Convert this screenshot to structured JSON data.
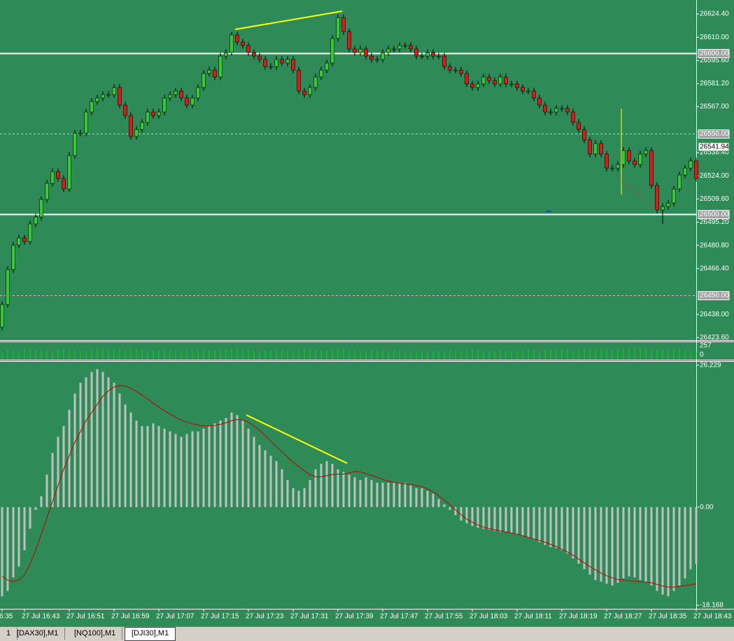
{
  "chart_data": [
    {
      "type": "candlestick",
      "xlim": [
        0,
        124
      ],
      "xticks": [
        {
          "value": 0,
          "label": "6:35"
        },
        {
          "value": 4,
          "label": "27 Jul 16:43"
        },
        {
          "value": 12,
          "label": "27 Jul 16:51"
        },
        {
          "value": 20,
          "label": "27 Jul 16:59"
        },
        {
          "value": 28,
          "label": "27 Jul 17:07"
        },
        {
          "value": 36,
          "label": "27 Jul 17:15"
        },
        {
          "value": 44,
          "label": "27 Jul 17:23"
        },
        {
          "value": 52,
          "label": "27 Jul 17:31"
        },
        {
          "value": 60,
          "label": "27 Jul 17:39"
        },
        {
          "value": 68,
          "label": "27 Jul 17:47"
        },
        {
          "value": 76,
          "label": "27 Jul 17:55"
        },
        {
          "value": 84,
          "label": "27 Jul 18:03"
        },
        {
          "value": 92,
          "label": "27 Jul 18:11"
        },
        {
          "value": 100,
          "label": "27 Jul 18:19"
        },
        {
          "value": 108,
          "label": "27 Jul 18:27"
        },
        {
          "value": 116,
          "label": "27 Jul 18:35"
        },
        {
          "value": 124,
          "label": "27 Jul 18:43"
        }
      ],
      "ylim": [
        26422.0,
        26633.1
      ],
      "yticks": [
        {
          "value": 26624.4,
          "label": "26624.40"
        },
        {
          "value": 26610,
          "label": "26610.00"
        },
        {
          "value": 26595.6,
          "label": "26595.60"
        },
        {
          "value": 26581.2,
          "label": "26581.20"
        },
        {
          "value": 26567,
          "label": "26567.00"
        },
        {
          "value": 26538.4,
          "label": "26538.40"
        },
        {
          "value": 26524,
          "label": "26524.00"
        },
        {
          "value": 26509.6,
          "label": "26509.60"
        },
        {
          "value": 26495.2,
          "label": "26495.20"
        },
        {
          "value": 26480.8,
          "label": "26480.80"
        },
        {
          "value": 26466.4,
          "label": "26466.40"
        },
        {
          "value": 26438,
          "label": "26438.00"
        },
        {
          "value": 26423.6,
          "label": "26423.60"
        }
      ],
      "price_lines": [
        {
          "value": 26600,
          "label": "26600.00",
          "style": "solid"
        },
        {
          "value": 26550,
          "label": "26550.00",
          "style": "dashed"
        },
        {
          "value": 26500,
          "label": "26500.00",
          "style": "solid"
        },
        {
          "value": 26450,
          "label": "26450.00",
          "style": "dashed"
        }
      ],
      "current_price": 26541.94,
      "up_color": "#32cd32",
      "down_color": "#e01818",
      "open": [
        26430.0,
        26444.1,
        26465.8,
        26481.0,
        26485.4,
        26483.2,
        26494.1,
        26498.4,
        26509.3,
        26519.3,
        26526.6,
        26522.3,
        26515.8,
        26536.6,
        26550.5,
        26550.5,
        26563.6,
        26570.1,
        26572.3,
        26574.4,
        26574.4,
        26578.8,
        26567.9,
        26561.4,
        26548.4,
        26552.7,
        26557.1,
        26563.6,
        26561.4,
        26563.6,
        26572.3,
        26574.4,
        26576.6,
        26572.3,
        26567.9,
        26572.3,
        26578.8,
        26587.5,
        26589.6,
        26585.3,
        26598.3,
        26600.5,
        26611.4,
        26607.0,
        26604.9,
        26600.5,
        26598.3,
        26596.2,
        26591.8,
        26591.8,
        26596.2,
        26594.0,
        26596.2,
        26589.6,
        26576.6,
        26574.4,
        26578.8,
        26585.3,
        26589.6,
        26594.0,
        26609.2,
        26622.2,
        26613.5,
        26602.7,
        26600.5,
        26602.7,
        26598.3,
        26596.2,
        26596.2,
        26600.5,
        26602.7,
        26602.7,
        26604.9,
        26604.9,
        26602.7,
        26598.3,
        26598.3,
        26600.5,
        26598.3,
        26598.3,
        26591.8,
        26589.6,
        26589.6,
        26587.5,
        26581.0,
        26578.8,
        26581.0,
        26585.3,
        26583.1,
        26581.0,
        26585.3,
        26581.0,
        26581.0,
        26578.8,
        26576.6,
        26576.6,
        26572.3,
        26567.9,
        26563.6,
        26563.6,
        26565.8,
        26565.8,
        26563.6,
        26557.1,
        26552.7,
        26546.2,
        26537.5,
        26544.0,
        26537.5,
        26528.8,
        26528.8,
        26531.0,
        26539.7,
        26533.2,
        26531.0,
        26537.5,
        26539.7,
        26518.0,
        26502.8,
        26504.9,
        26507.1,
        26515.8,
        26524.5,
        26528.8,
        26533.2
      ],
      "high": [
        26446.1,
        26467.8,
        26483.0,
        26487.4,
        26487.4,
        26496.1,
        26500.4,
        26511.3,
        26521.3,
        26528.6,
        26528.6,
        26524.3,
        26538.6,
        26552.5,
        26552.5,
        26565.6,
        26572.1,
        26574.3,
        26576.4,
        26576.4,
        26580.8,
        26580.8,
        26569.9,
        26563.4,
        26554.7,
        26559.1,
        26565.6,
        26565.6,
        26565.6,
        26574.3,
        26576.4,
        26578.6,
        26578.6,
        26574.3,
        26574.3,
        26580.8,
        26589.5,
        26591.6,
        26591.6,
        26600.3,
        26602.5,
        26613.4,
        26613.4,
        26609.0,
        26606.9,
        26602.5,
        26600.3,
        26598.2,
        26593.8,
        26598.2,
        26598.2,
        26598.2,
        26598.2,
        26591.6,
        26578.6,
        26580.8,
        26587.3,
        26591.6,
        26596.0,
        26611.2,
        26624.2,
        26624.2,
        26615.5,
        26604.7,
        26604.7,
        26604.7,
        26600.3,
        26598.2,
        26602.5,
        26604.7,
        26604.7,
        26606.9,
        26606.9,
        26606.9,
        26604.7,
        26600.3,
        26602.5,
        26602.5,
        26600.3,
        26600.3,
        26593.8,
        26591.6,
        26591.6,
        26589.5,
        26583.0,
        26583.0,
        26587.3,
        26587.3,
        26585.1,
        26587.3,
        26587.3,
        26583.0,
        26583.0,
        26580.8,
        26578.6,
        26578.6,
        26574.3,
        26569.9,
        26565.6,
        26567.8,
        26567.8,
        26567.8,
        26565.6,
        26559.1,
        26554.7,
        26548.2,
        26546.0,
        26546.0,
        26539.5,
        26530.8,
        26533.0,
        26541.7,
        26541.7,
        26535.2,
        26539.5,
        26541.7,
        26541.7,
        26520.0,
        26506.9,
        26509.1,
        26517.8,
        26526.5,
        26530.8,
        26535.2,
        26535.2
      ],
      "low": [
        26428.0,
        26442.1,
        26463.8,
        26479.0,
        26481.2,
        26481.2,
        26492.1,
        26496.4,
        26507.3,
        26517.3,
        26520.3,
        26513.8,
        26513.8,
        26534.6,
        26548.5,
        26548.5,
        26561.6,
        26568.1,
        26570.3,
        26572.4,
        26572.4,
        26565.9,
        26559.4,
        26546.4,
        26546.4,
        26550.7,
        26555.1,
        26559.4,
        26559.4,
        26561.6,
        26570.3,
        26572.4,
        26570.3,
        26565.9,
        26565.9,
        26570.3,
        26576.8,
        26585.5,
        26583.3,
        26583.3,
        26596.3,
        26598.5,
        26605.0,
        26602.9,
        26598.5,
        26596.3,
        26594.2,
        26589.8,
        26589.8,
        26589.8,
        26592.0,
        26592.0,
        26587.6,
        26574.6,
        26572.4,
        26572.4,
        26576.8,
        26583.3,
        26587.6,
        26592.0,
        26607.2,
        26611.5,
        26600.7,
        26598.5,
        26598.5,
        26596.3,
        26594.2,
        26594.2,
        26594.2,
        26598.5,
        26600.7,
        26600.7,
        26602.9,
        26600.7,
        26596.3,
        26596.3,
        26596.3,
        26596.3,
        26596.3,
        26589.8,
        26587.6,
        26587.6,
        26585.5,
        26579.0,
        26576.8,
        26576.8,
        26579.0,
        26581.1,
        26579.0,
        26579.0,
        26579.0,
        26579.0,
        26576.8,
        26574.6,
        26574.6,
        26570.3,
        26565.9,
        26561.6,
        26561.6,
        26561.6,
        26563.8,
        26561.6,
        26555.1,
        26550.7,
        26544.2,
        26535.5,
        26535.5,
        26535.5,
        26526.8,
        26526.8,
        26526.8,
        26529.0,
        26531.2,
        26529.0,
        26529.0,
        26535.5,
        26516.0,
        26500.8,
        26494.0,
        26502.9,
        26505.1,
        26513.8,
        26522.5,
        26526.8,
        26520.3
      ],
      "close": [
        26444.1,
        26465.8,
        26481.0,
        26485.4,
        26483.2,
        26494.1,
        26498.4,
        26509.3,
        26519.3,
        26526.6,
        26522.3,
        26515.8,
        26536.6,
        26550.5,
        26550.5,
        26563.6,
        26570.1,
        26572.3,
        26574.4,
        26574.4,
        26578.8,
        26567.9,
        26561.4,
        26548.4,
        26552.7,
        26557.1,
        26563.6,
        26561.4,
        26563.6,
        26572.3,
        26574.4,
        26576.6,
        26572.3,
        26567.9,
        26572.3,
        26578.8,
        26587.5,
        26589.6,
        26585.3,
        26598.3,
        26600.5,
        26611.4,
        26607.0,
        26604.9,
        26600.5,
        26598.3,
        26596.2,
        26591.8,
        26591.8,
        26596.2,
        26594.0,
        26596.2,
        26589.6,
        26576.6,
        26574.4,
        26578.8,
        26585.3,
        26589.6,
        26594.0,
        26609.2,
        26622.2,
        26613.5,
        26602.7,
        26600.5,
        26602.7,
        26598.3,
        26596.2,
        26596.2,
        26600.5,
        26602.7,
        26602.7,
        26604.9,
        26604.9,
        26602.7,
        26598.3,
        26598.3,
        26600.5,
        26598.3,
        26598.3,
        26591.8,
        26589.6,
        26589.6,
        26587.5,
        26581.0,
        26578.8,
        26581.0,
        26585.3,
        26583.1,
        26581.0,
        26585.3,
        26581.0,
        26581.0,
        26578.8,
        26576.6,
        26576.6,
        26572.3,
        26567.9,
        26563.6,
        26563.6,
        26565.8,
        26565.8,
        26563.6,
        26557.1,
        26552.7,
        26546.2,
        26537.5,
        26544.0,
        26537.5,
        26528.8,
        26528.8,
        26531.0,
        26539.7,
        26533.2,
        26531.0,
        26537.5,
        26539.7,
        26518.0,
        26502.8,
        26504.9,
        26507.1,
        26515.8,
        26524.5,
        26528.8,
        26533.2,
        26522.3
      ]
    },
    {
      "type": "volume",
      "color": "#00e000",
      "ylim": [
        0,
        257
      ],
      "yticks": [
        257,
        0
      ],
      "values": [
        120,
        150,
        140,
        130,
        160,
        170,
        150,
        140,
        130,
        120,
        150,
        160,
        170,
        140,
        130,
        150,
        160,
        180,
        190,
        170,
        160,
        150,
        140,
        160,
        170,
        150,
        130,
        140,
        150,
        160,
        150,
        140,
        130,
        150,
        140,
        160,
        170,
        150,
        140,
        160,
        150,
        170,
        180,
        160,
        150,
        140,
        130,
        140,
        150,
        160,
        150,
        140,
        130,
        150,
        160,
        170,
        150,
        140,
        150,
        170,
        180,
        160,
        150,
        140,
        130,
        140,
        150,
        140,
        130,
        140,
        150,
        140,
        130,
        120,
        130,
        140,
        130,
        120,
        130,
        140,
        150,
        140,
        130,
        150,
        160,
        150,
        140,
        130,
        140,
        150,
        140,
        130,
        140,
        150,
        160,
        150,
        140,
        150,
        160,
        170,
        160,
        150,
        140,
        150,
        160,
        170,
        180,
        170,
        160,
        150,
        160,
        170,
        180,
        200,
        190,
        180,
        170,
        160,
        150,
        160,
        170,
        160,
        150,
        140,
        130
      ]
    },
    {
      "type": "macd",
      "histogram_color": "#c0c0c0",
      "signal_color": "#c00000",
      "ylim": [
        -18.168,
        26.229
      ],
      "yticks": [
        26.229,
        {
          "value": 0,
          "label": "0.00"
        },
        -18.168
      ],
      "histogram": [
        -16.5,
        -15.5,
        -13,
        -11,
        -8,
        -4,
        -0.5,
        2,
        6,
        10,
        13,
        15,
        18,
        21,
        23,
        24,
        25,
        25.5,
        25,
        24,
        23,
        21,
        19,
        17.5,
        16,
        15,
        15,
        15.5,
        15,
        14.5,
        14,
        13.5,
        13,
        13.5,
        14,
        14,
        14.5,
        15,
        15.5,
        16,
        16.5,
        17.5,
        17,
        16,
        14.5,
        13,
        11.5,
        10.5,
        9.5,
        8.5,
        7,
        5,
        3.5,
        3,
        3.5,
        5,
        7,
        8,
        8.5,
        8,
        7,
        6.5,
        6,
        5.5,
        5,
        5.5,
        5,
        4.5,
        4.5,
        4.5,
        4.5,
        4.5,
        4.5,
        4,
        3.5,
        3.5,
        3,
        2.5,
        1.5,
        0.5,
        -0.5,
        -1.5,
        -2.5,
        -3,
        -3.5,
        -3.8,
        -4,
        -4.2,
        -4.4,
        -4.6,
        -4.6,
        -4.8,
        -5,
        -5.3,
        -5.6,
        -6,
        -6.5,
        -7,
        -7.4,
        -7.6,
        -8,
        -8.6,
        -9.5,
        -10.5,
        -11.5,
        -12.5,
        -13.5,
        -13.8,
        -14.2,
        -14.5,
        -14,
        -13.2,
        -12.8,
        -13,
        -13.5,
        -13.8,
        -14.5,
        -15.5,
        -16.2,
        -16.5,
        -15.5,
        -14.5,
        -13.2,
        -11.5,
        -10.5
      ],
      "signal": [
        -12.8,
        -13.5,
        -13.8,
        -13.5,
        -12.5,
        -10.5,
        -8,
        -5,
        -2,
        1,
        4,
        7,
        9.5,
        12,
        14,
        16,
        17.5,
        19,
        20.5,
        21.5,
        22.2,
        22.5,
        22.4,
        22,
        21.4,
        20.7,
        20,
        19.2,
        18.5,
        17.8,
        17.2,
        16.6,
        16.1,
        15.7,
        15.4,
        15.2,
        15,
        15,
        15.1,
        15.3,
        15.6,
        16,
        16.2,
        16.1,
        15.7,
        15,
        14.2,
        13.2,
        12.2,
        11.2,
        10.2,
        9.2,
        8.3,
        7.5,
        6.7,
        6,
        5.6,
        5.6,
        5.8,
        6,
        6.1,
        6.1,
        6.3,
        6.6,
        6.5,
        6.2,
        5.9,
        5.5,
        5.1,
        4.8,
        4.6,
        4.4,
        4.3,
        4.2,
        4,
        3.8,
        3.4,
        2.8,
        2.1,
        1.3,
        0.4,
        -0.5,
        -1.4,
        -2.2,
        -2.8,
        -3.3,
        -3.7,
        -4,
        -4.2,
        -4.4,
        -4.6,
        -4.8,
        -5,
        -5.3,
        -5.6,
        -5.9,
        -6.2,
        -6.5,
        -6.9,
        -7.3,
        -7.8,
        -8.3,
        -8.9,
        -9.6,
        -10.3,
        -11,
        -11.6,
        -12.2,
        -12.7,
        -13.1,
        -13.4,
        -13.5,
        -13.6,
        -13.7,
        -13.8,
        -13.9,
        -14,
        -14.3,
        -14.6,
        -14.8,
        -14.8,
        -14.7,
        -14.5,
        -14.4,
        -14.2
      ]
    }
  ],
  "tabs": [
    "1",
    "[DAX30],M1",
    "[NQ100],M1",
    "[DJI30],M1"
  ],
  "active_tab": 3
}
